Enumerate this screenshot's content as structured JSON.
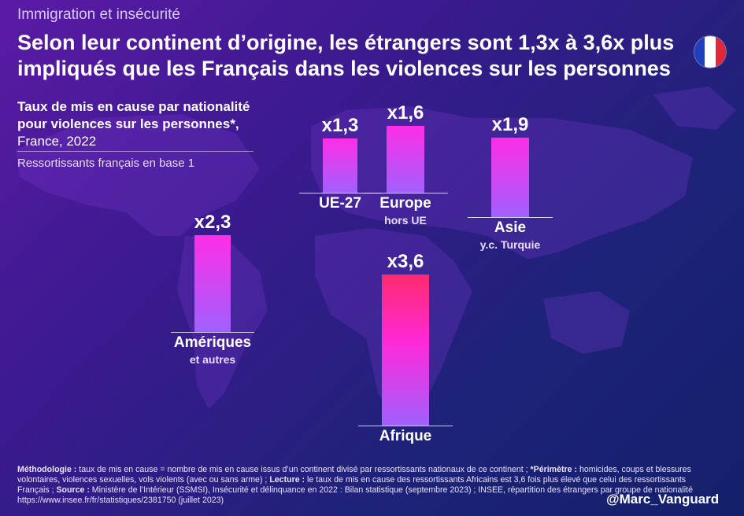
{
  "header": {
    "kicker": "Immigration et insécurité",
    "title": "Selon leur continent d’origine, les étrangers sont 1,3x à 3,6x plus impliqués que les Français dans les violences sur les personnes"
  },
  "subtitle": {
    "bold_part": "Taux de mis en cause par nationalité pour violences sur les personnes*,",
    "rest": " France, 2022",
    "base_note": "Ressortissants français en base 1"
  },
  "flag_colors": [
    "#1f3fbf",
    "#ffffff",
    "#e0283a"
  ],
  "chart_data": {
    "type": "bar",
    "title": "Taux de mis en cause par nationalité pour violences sur les personnes*, France, 2022",
    "ylabel": "Ressortissants français en base 1",
    "categories": [
      "UE-27",
      "Europe hors UE",
      "Asie y.c. Turquie",
      "Amériques et autres",
      "Afrique"
    ],
    "values": [
      1.3,
      1.6,
      1.9,
      2.3,
      3.6
    ],
    "value_labels": [
      "x1,3",
      "x1,6",
      "x1,9",
      "x2,3",
      "x3,6"
    ],
    "category_names": [
      "UE-27",
      "Europe",
      "Asie",
      "Amériques",
      "Afrique"
    ],
    "category_subs": [
      "",
      "hors UE",
      "y.c. Turquie",
      "et autres",
      ""
    ],
    "colors": {
      "bar_top": "#ff2ee6",
      "bar_bottom": "#a060ff",
      "africa_top": "#ff2a6e",
      "africa_mid": "#ff29d9"
    }
  },
  "footer": {
    "methodologie_label": "Méthodologie :",
    "methodologie": " taux de mis en cause = nombre de mis en cause issus d’un continent divisé par ressortissants nationaux de ce continent ;",
    "perimetre_label": " *Périmètre :",
    "perimetre": " homicides, coups et blessures volontaires, violences sexuelles, vols violents (avec ou sans arme) ;",
    "lecture_label": " Lecture :",
    "lecture": " le taux de mis en cause des ressortissants Africains est 3,6 fois plus élevé que celui des ressortissants Français ;",
    "source_label": " Source :",
    "source": " Ministère de l’Intérieur (SSMSI), Insécurité et délinquance en 2022 : Bilan statistique (septembre 2023) ; INSEE, répartition des étrangers par groupe de nationalité https://www.insee.fr/fr/statistiques/2381750 (juillet 2023)",
    "handle": "@Marc_Vanguard"
  }
}
